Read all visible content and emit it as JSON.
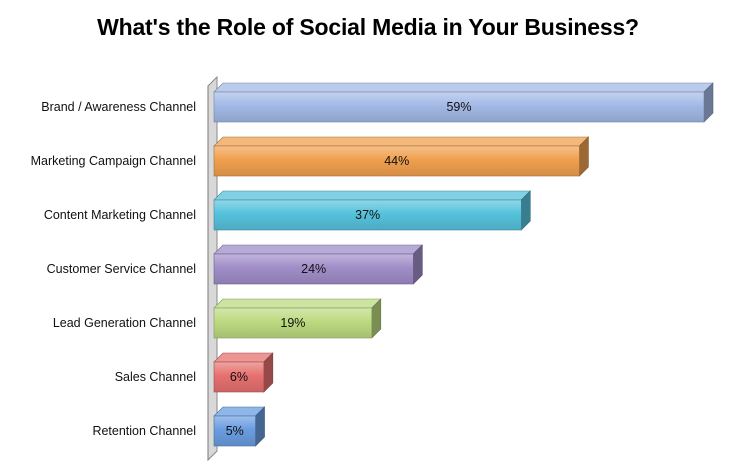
{
  "chart_data": {
    "type": "bar",
    "orientation": "horizontal",
    "style": "3d",
    "title": "What's the Role of Social Media in Your Business?",
    "xlabel": "",
    "ylabel": "",
    "xlim": [
      0,
      60
    ],
    "grid": false,
    "legend": "none",
    "categories": [
      "Brand / Awareness Channel",
      "Marketing Campaign Channel",
      "Content Marketing Channel",
      "Customer Service Channel",
      "Lead Generation Channel",
      "Sales Channel",
      "Retention Channel"
    ],
    "values": [
      59,
      44,
      37,
      24,
      19,
      6,
      5
    ],
    "data_labels": [
      "59%",
      "44%",
      "37%",
      "24%",
      "19%",
      "6%",
      "5%"
    ],
    "colors": [
      "#a3b9e6",
      "#f0a04e",
      "#56c2dc",
      "#a08dc8",
      "#bcda80",
      "#e6716f",
      "#6a9de0"
    ]
  }
}
